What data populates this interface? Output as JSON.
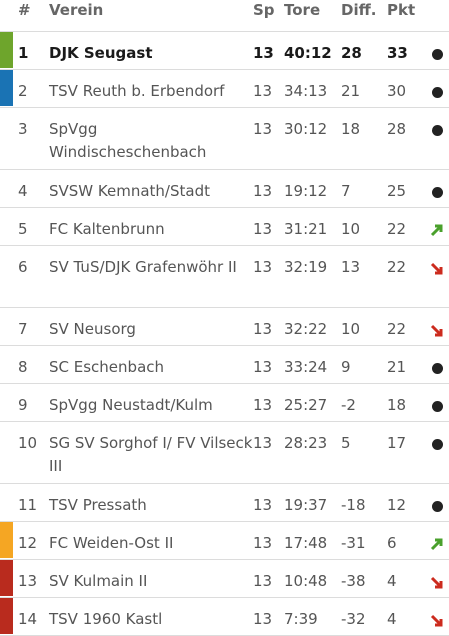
{
  "header": {
    "rank": "#",
    "team": "Verein",
    "played": "Sp",
    "goals": "Tore",
    "diff": "Diff.",
    "points": "Pkt"
  },
  "colors": {
    "leader_green": "#6ea52c",
    "relegation_playoff_blue": "#1a73b4",
    "relegation_playoff_orange": "#f5a623",
    "relegation_red": "#b92b1e",
    "trend_up": "#4aa02c",
    "trend_down": "#cc2b1e",
    "trend_same": "#222222"
  },
  "rows": [
    {
      "rank": "1",
      "team": "DJK Seugast",
      "played": "13",
      "goals": "40:12",
      "diff": "28",
      "points": "33",
      "trend": "same-icon",
      "marker": "#6ea52c",
      "current": true
    },
    {
      "rank": "2",
      "team": "TSV Reuth b. Erbendorf",
      "played": "13",
      "goals": "34:13",
      "diff": "21",
      "points": "30",
      "trend": "same-icon",
      "marker": "#1a73b4"
    },
    {
      "rank": "3",
      "team": "SpVgg Windischeschenbach",
      "played": "13",
      "goals": "30:12",
      "diff": "18",
      "points": "28",
      "trend": "same-icon",
      "marker": ""
    },
    {
      "rank": "4",
      "team": "SVSW Kemnath/Stadt",
      "played": "13",
      "goals": "19:12",
      "diff": "7",
      "points": "25",
      "trend": "same-icon",
      "marker": ""
    },
    {
      "rank": "5",
      "team": "FC Kaltenbrunn",
      "played": "13",
      "goals": "31:21",
      "diff": "10",
      "points": "22",
      "trend": "arrow-up-icon",
      "marker": ""
    },
    {
      "rank": "6",
      "team": "SV TuS/DJK Grafenwöhr II",
      "played": "13",
      "goals": "32:19",
      "diff": "13",
      "points": "22",
      "trend": "arrow-down-icon",
      "marker": ""
    },
    {
      "rank": "7",
      "team": "SV Neusorg",
      "played": "13",
      "goals": "32:22",
      "diff": "10",
      "points": "22",
      "trend": "arrow-down-icon",
      "marker": ""
    },
    {
      "rank": "8",
      "team": "SC Eschenbach",
      "played": "13",
      "goals": "33:24",
      "diff": "9",
      "points": "21",
      "trend": "same-icon",
      "marker": ""
    },
    {
      "rank": "9",
      "team": "SpVgg Neustadt/Kulm",
      "played": "13",
      "goals": "25:27",
      "diff": "-2",
      "points": "18",
      "trend": "same-icon",
      "marker": ""
    },
    {
      "rank": "10",
      "team": "SG SV Sorghof I/ FV Vilseck III",
      "played": "13",
      "goals": "28:23",
      "diff": "5",
      "points": "17",
      "trend": "same-icon",
      "marker": ""
    },
    {
      "rank": "11",
      "team": "TSV Pressath",
      "played": "13",
      "goals": "19:37",
      "diff": "-18",
      "points": "12",
      "trend": "same-icon",
      "marker": ""
    },
    {
      "rank": "12",
      "team": "FC Weiden-Ost II",
      "played": "13",
      "goals": "17:48",
      "diff": "-31",
      "points": "6",
      "trend": "arrow-up-icon",
      "marker": "#f5a623"
    },
    {
      "rank": "13",
      "team": "SV Kulmain II",
      "played": "13",
      "goals": "10:48",
      "diff": "-38",
      "points": "4",
      "trend": "arrow-down-icon",
      "marker": "#b92b1e"
    },
    {
      "rank": "14",
      "team": "TSV 1960 Kastl",
      "played": "13",
      "goals": "7:39",
      "diff": "-32",
      "points": "4",
      "trend": "arrow-down-icon",
      "marker": "#b92b1e"
    }
  ]
}
